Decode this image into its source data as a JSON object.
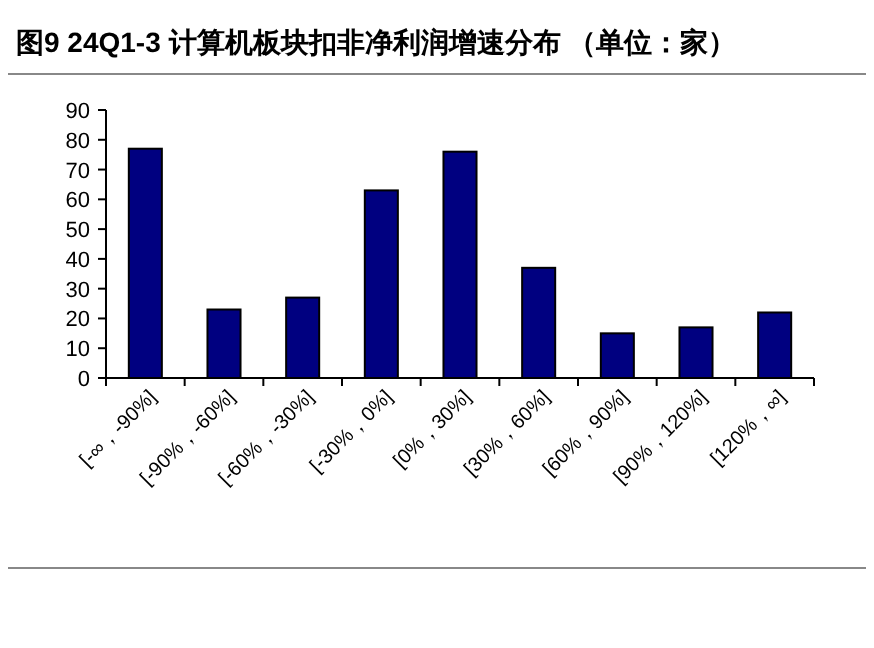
{
  "chart_data": {
    "type": "bar",
    "title": "图9  24Q1-3 计算机板块扣非净利润增速分布 （单位：家）",
    "categories": [
      "[-∞，-90%]",
      "[-90%，-60%]",
      "[-60%，-30%]",
      "[-30%，0%]",
      "[0%，30%]",
      "[30%，60%]",
      "[60%，90%]",
      "[90%，120%]",
      "[120%，∞]"
    ],
    "values": [
      77,
      23,
      27,
      63,
      76,
      37,
      15,
      17,
      22
    ],
    "color": "#000080",
    "ylim": [
      0,
      90
    ],
    "yticks": [
      0,
      10,
      20,
      30,
      40,
      50,
      60,
      70,
      80,
      90
    ],
    "grid": false
  }
}
